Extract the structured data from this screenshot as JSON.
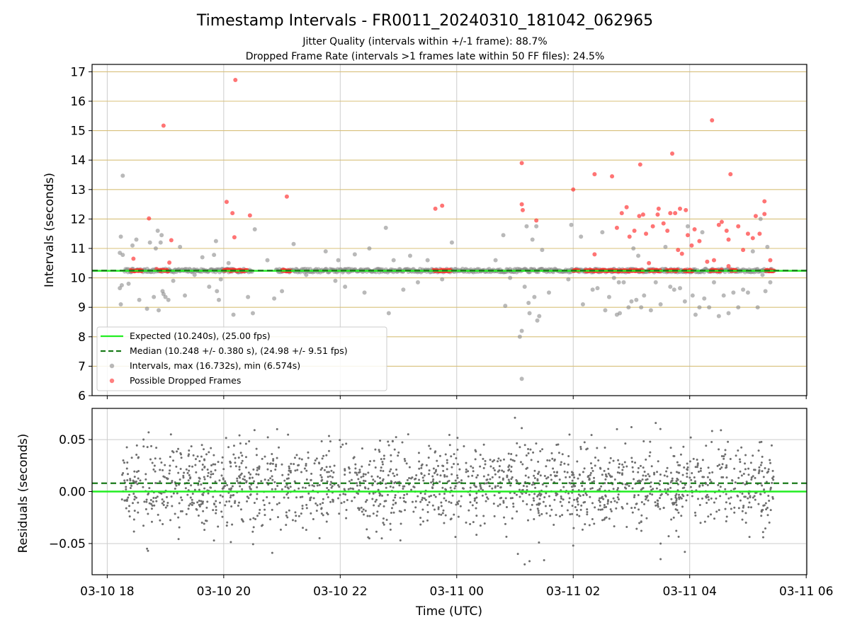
{
  "title": "Timestamp Intervals - FR0011_20240310_181042_062965",
  "subtitle_lines": [
    "Jitter Quality (intervals within +/-1 frame): 88.7%",
    "Dropped Frame Rate (intervals >1 frames late within 50 FF files): 24.5%"
  ],
  "colors": {
    "expected": "#22ee22",
    "median": "#1a7a1a",
    "intervals": "#8a8a8a",
    "dropped": "#ff2a2a",
    "hgrid_top": "#d8c07a",
    "grid": "#cccccc"
  },
  "chart_data": [
    {
      "type": "scatter",
      "panel": "intervals",
      "xlabel": "",
      "ylabel": "Intervals (seconds)",
      "ylim": [
        6,
        17.25
      ],
      "yticks": [
        "6",
        "7",
        "8",
        "9",
        "10",
        "11",
        "12",
        "13",
        "14",
        "15",
        "16",
        "17"
      ],
      "grid": true,
      "legend_position": "lower-left",
      "expected": 10.24,
      "median": 10.248,
      "legend": [
        "Expected (10.240s), (25.00 fps)",
        "Median (10.248 +/- 0.380 s), (24.98 +/- 9.51 fps)",
        "Intervals, max (16.732s), min (6.574s)",
        "Possible Dropped Frames"
      ],
      "baseline_gray_hours": [
        [
          18.3,
          20.5
        ],
        [
          20.9,
          22.4
        ],
        [
          22.4,
          24.0
        ],
        [
          24.0,
          25.5
        ],
        [
          25.5,
          29.45
        ]
      ],
      "baseline_red_hours": [
        [
          18.4,
          18.6
        ],
        [
          18.9,
          19.05
        ],
        [
          20.0,
          20.4
        ],
        [
          21.0,
          21.15
        ],
        [
          23.6,
          23.9
        ],
        [
          26.0,
          26.1
        ],
        [
          26.2,
          26.4
        ],
        [
          26.4,
          26.8
        ],
        [
          26.8,
          27.2
        ],
        [
          27.3,
          27.5
        ],
        [
          27.6,
          27.8
        ],
        [
          27.9,
          28.05
        ],
        [
          28.35,
          28.55
        ],
        [
          28.7,
          28.8
        ],
        [
          29.3,
          29.45
        ]
      ],
      "dropped_points": [
        {
          "x": "03-10 18:27",
          "y": 10.65
        },
        {
          "x": "03-10 18:43",
          "y": 12.02
        },
        {
          "x": "03-10 18:51",
          "y": 10.3
        },
        {
          "x": "03-10 18:58",
          "y": 15.17
        },
        {
          "x": "03-10 19:06",
          "y": 11.28
        },
        {
          "x": "03-10 19:04",
          "y": 10.52
        },
        {
          "x": "03-10 20:03",
          "y": 12.58
        },
        {
          "x": "03-10 20:09",
          "y": 12.2
        },
        {
          "x": "03-10 20:12",
          "y": 16.72
        },
        {
          "x": "03-10 20:11",
          "y": 11.38
        },
        {
          "x": "03-10 20:27",
          "y": 12.12
        },
        {
          "x": "03-10 21:05",
          "y": 12.76
        },
        {
          "x": "03-10 23:38",
          "y": 12.35
        },
        {
          "x": "03-10 23:45",
          "y": 12.45
        },
        {
          "x": "03-11 01:07",
          "y": 13.9
        },
        {
          "x": "03-11 01:07",
          "y": 12.5
        },
        {
          "x": "03-11 01:08",
          "y": 12.3
        },
        {
          "x": "03-11 01:22",
          "y": 11.95
        },
        {
          "x": "03-11 02:00",
          "y": 13.0
        },
        {
          "x": "03-11 02:22",
          "y": 10.8
        },
        {
          "x": "03-11 02:22",
          "y": 13.52
        },
        {
          "x": "03-11 02:40",
          "y": 13.45
        },
        {
          "x": "03-11 02:45",
          "y": 11.7
        },
        {
          "x": "03-11 02:50",
          "y": 12.2
        },
        {
          "x": "03-11 02:55",
          "y": 12.4
        },
        {
          "x": "03-11 02:58",
          "y": 11.4
        },
        {
          "x": "03-11 03:03",
          "y": 11.6
        },
        {
          "x": "03-11 03:08",
          "y": 12.1
        },
        {
          "x": "03-11 03:09",
          "y": 13.85
        },
        {
          "x": "03-11 03:12",
          "y": 12.15
        },
        {
          "x": "03-11 03:15",
          "y": 11.5
        },
        {
          "x": "03-11 03:18",
          "y": 10.5
        },
        {
          "x": "03-11 03:22",
          "y": 11.75
        },
        {
          "x": "03-11 03:27",
          "y": 12.15
        },
        {
          "x": "03-11 03:28",
          "y": 12.35
        },
        {
          "x": "03-11 03:33",
          "y": 11.85
        },
        {
          "x": "03-11 03:37",
          "y": 11.6
        },
        {
          "x": "03-11 03:40",
          "y": 12.2
        },
        {
          "x": "03-11 03:42",
          "y": 14.22
        },
        {
          "x": "03-11 03:45",
          "y": 12.2
        },
        {
          "x": "03-11 03:48",
          "y": 10.95
        },
        {
          "x": "03-11 03:50",
          "y": 12.35
        },
        {
          "x": "03-11 03:52",
          "y": 10.82
        },
        {
          "x": "03-11 03:56",
          "y": 12.3
        },
        {
          "x": "03-11 03:58",
          "y": 11.45
        },
        {
          "x": "03-11 04:02",
          "y": 11.1
        },
        {
          "x": "03-11 04:05",
          "y": 11.65
        },
        {
          "x": "03-11 04:10",
          "y": 11.25
        },
        {
          "x": "03-11 04:18",
          "y": 10.55
        },
        {
          "x": "03-11 04:23",
          "y": 15.35
        },
        {
          "x": "03-11 04:25",
          "y": 10.6
        },
        {
          "x": "03-11 04:30",
          "y": 11.8
        },
        {
          "x": "03-11 04:33",
          "y": 11.9
        },
        {
          "x": "03-11 04:38",
          "y": 11.6
        },
        {
          "x": "03-11 04:40",
          "y": 11.3
        },
        {
          "x": "03-11 04:42",
          "y": 13.52
        },
        {
          "x": "03-11 04:40",
          "y": 10.4
        },
        {
          "x": "03-11 04:50",
          "y": 11.75
        },
        {
          "x": "03-11 04:55",
          "y": 10.95
        },
        {
          "x": "03-11 05:00",
          "y": 11.5
        },
        {
          "x": "03-11 05:05",
          "y": 11.35
        },
        {
          "x": "03-11 05:08",
          "y": 12.1
        },
        {
          "x": "03-11 05:12",
          "y": 11.5
        },
        {
          "x": "03-11 05:17",
          "y": 12.6
        },
        {
          "x": "03-11 05:17",
          "y": 12.17
        },
        {
          "x": "03-11 05:23",
          "y": 10.6
        }
      ],
      "scatter_gray_points": [
        {
          "x": "03-10 18:16",
          "y": 13.47
        },
        {
          "x": "03-10 18:14",
          "y": 11.4
        },
        {
          "x": "03-10 18:13",
          "y": 10.85
        },
        {
          "x": "03-10 18:16",
          "y": 10.78
        },
        {
          "x": "03-10 18:13",
          "y": 9.65
        },
        {
          "x": "03-10 18:15",
          "y": 9.75
        },
        {
          "x": "03-10 18:14",
          "y": 9.1
        },
        {
          "x": "03-10 18:22",
          "y": 9.8
        },
        {
          "x": "03-10 18:26",
          "y": 11.1
        },
        {
          "x": "03-10 18:30",
          "y": 11.3
        },
        {
          "x": "03-10 18:33",
          "y": 9.25
        },
        {
          "x": "03-10 18:41",
          "y": 8.95
        },
        {
          "x": "03-10 18:44",
          "y": 11.2
        },
        {
          "x": "03-10 18:48",
          "y": 9.35
        },
        {
          "x": "03-10 18:50",
          "y": 11.0
        },
        {
          "x": "03-10 18:52",
          "y": 11.6
        },
        {
          "x": "03-10 18:55",
          "y": 11.2
        },
        {
          "x": "03-10 18:57",
          "y": 9.55
        },
        {
          "x": "03-10 18:58",
          "y": 9.45
        },
        {
          "x": "03-10 18:53",
          "y": 8.9
        },
        {
          "x": "03-10 18:56",
          "y": 11.45
        },
        {
          "x": "03-10 19:00",
          "y": 9.35
        },
        {
          "x": "03-10 19:03",
          "y": 9.25
        },
        {
          "x": "03-10 19:08",
          "y": 9.9
        },
        {
          "x": "03-10 19:15",
          "y": 11.05
        },
        {
          "x": "03-10 19:20",
          "y": 9.4
        },
        {
          "x": "03-10 19:30",
          "y": 10.1
        },
        {
          "x": "03-10 19:38",
          "y": 10.7
        },
        {
          "x": "03-10 19:45",
          "y": 9.7
        },
        {
          "x": "03-10 19:50",
          "y": 10.78
        },
        {
          "x": "03-10 19:52",
          "y": 11.25
        },
        {
          "x": "03-10 19:53",
          "y": 9.55
        },
        {
          "x": "03-10 19:55",
          "y": 9.25
        },
        {
          "x": "03-10 19:57",
          "y": 9.95
        },
        {
          "x": "03-10 20:05",
          "y": 10.5
        },
        {
          "x": "03-10 20:10",
          "y": 8.75
        },
        {
          "x": "03-10 20:15",
          "y": 10.25
        },
        {
          "x": "03-10 20:25",
          "y": 9.35
        },
        {
          "x": "03-10 20:32",
          "y": 11.65
        },
        {
          "x": "03-10 20:30",
          "y": 8.8
        },
        {
          "x": "03-10 20:45",
          "y": 10.6
        },
        {
          "x": "03-10 20:52",
          "y": 9.3
        },
        {
          "x": "03-10 21:00",
          "y": 9.55
        },
        {
          "x": "03-10 21:12",
          "y": 11.15
        },
        {
          "x": "03-10 21:25",
          "y": 10.1
        },
        {
          "x": "03-10 21:45",
          "y": 10.9
        },
        {
          "x": "03-10 21:55",
          "y": 9.9
        },
        {
          "x": "03-10 21:58",
          "y": 10.6
        },
        {
          "x": "03-10 22:05",
          "y": 9.7
        },
        {
          "x": "03-10 22:15",
          "y": 10.8
        },
        {
          "x": "03-10 22:25",
          "y": 9.5
        },
        {
          "x": "03-10 22:30",
          "y": 11.0
        },
        {
          "x": "03-10 22:40",
          "y": 10.3
        },
        {
          "x": "03-10 22:47",
          "y": 11.7
        },
        {
          "x": "03-10 22:50",
          "y": 8.8
        },
        {
          "x": "03-10 22:55",
          "y": 10.6
        },
        {
          "x": "03-10 23:05",
          "y": 9.6
        },
        {
          "x": "03-10 23:12",
          "y": 10.75
        },
        {
          "x": "03-10 23:20",
          "y": 9.85
        },
        {
          "x": "03-10 23:30",
          "y": 10.6
        },
        {
          "x": "03-10 23:45",
          "y": 9.95
        },
        {
          "x": "03-10 23:55",
          "y": 11.2
        },
        {
          "x": "03-11 00:40",
          "y": 10.6
        },
        {
          "x": "03-11 00:48",
          "y": 11.45
        },
        {
          "x": "03-11 00:50",
          "y": 9.05
        },
        {
          "x": "03-11 00:55",
          "y": 10.0
        },
        {
          "x": "03-11 01:05",
          "y": 8.0
        },
        {
          "x": "03-11 01:07",
          "y": 8.2
        },
        {
          "x": "03-11 01:07",
          "y": 6.57
        },
        {
          "x": "03-11 01:10",
          "y": 9.7
        },
        {
          "x": "03-11 01:12",
          "y": 11.75
        },
        {
          "x": "03-11 01:14",
          "y": 9.15
        },
        {
          "x": "03-11 01:15",
          "y": 8.8
        },
        {
          "x": "03-11 01:18",
          "y": 11.3
        },
        {
          "x": "03-11 01:20",
          "y": 9.35
        },
        {
          "x": "03-11 01:22",
          "y": 11.75
        },
        {
          "x": "03-11 01:23",
          "y": 8.55
        },
        {
          "x": "03-11 01:25",
          "y": 8.7
        },
        {
          "x": "03-11 01:28",
          "y": 10.95
        },
        {
          "x": "03-11 01:35",
          "y": 9.5
        },
        {
          "x": "03-11 01:55",
          "y": 9.95
        },
        {
          "x": "03-11 01:58",
          "y": 11.8
        },
        {
          "x": "03-11 02:10",
          "y": 9.1
        },
        {
          "x": "03-11 02:08",
          "y": 11.4
        },
        {
          "x": "03-11 02:20",
          "y": 9.6
        },
        {
          "x": "03-11 02:25",
          "y": 9.65
        },
        {
          "x": "03-11 02:30",
          "y": 11.55
        },
        {
          "x": "03-11 02:33",
          "y": 8.9
        },
        {
          "x": "03-11 02:37",
          "y": 9.35
        },
        {
          "x": "03-11 02:42",
          "y": 10.0
        },
        {
          "x": "03-11 02:45",
          "y": 8.75
        },
        {
          "x": "03-11 02:47",
          "y": 9.85
        },
        {
          "x": "03-11 02:48",
          "y": 8.8
        },
        {
          "x": "03-11 02:52",
          "y": 9.85
        },
        {
          "x": "03-11 02:57",
          "y": 9.0
        },
        {
          "x": "03-11 03:00",
          "y": 9.2
        },
        {
          "x": "03-11 03:02",
          "y": 11.0
        },
        {
          "x": "03-11 03:05",
          "y": 9.25
        },
        {
          "x": "03-11 03:07",
          "y": 10.75
        },
        {
          "x": "03-11 03:10",
          "y": 9.0
        },
        {
          "x": "03-11 03:13",
          "y": 9.4
        },
        {
          "x": "03-11 03:20",
          "y": 8.9
        },
        {
          "x": "03-11 03:25",
          "y": 9.85
        },
        {
          "x": "03-11 03:30",
          "y": 9.1
        },
        {
          "x": "03-11 03:35",
          "y": 11.05
        },
        {
          "x": "03-11 03:40",
          "y": 9.7
        },
        {
          "x": "03-11 03:44",
          "y": 9.6
        },
        {
          "x": "03-11 03:50",
          "y": 9.65
        },
        {
          "x": "03-11 03:55",
          "y": 9.2
        },
        {
          "x": "03-11 03:58",
          "y": 11.75
        },
        {
          "x": "03-11 04:03",
          "y": 9.4
        },
        {
          "x": "03-11 04:06",
          "y": 8.75
        },
        {
          "x": "03-11 04:10",
          "y": 9.0
        },
        {
          "x": "03-11 04:13",
          "y": 11.55
        },
        {
          "x": "03-11 04:15",
          "y": 9.3
        },
        {
          "x": "03-11 04:20",
          "y": 9.0
        },
        {
          "x": "03-11 04:25",
          "y": 9.85
        },
        {
          "x": "03-11 04:30",
          "y": 8.7
        },
        {
          "x": "03-11 04:35",
          "y": 9.4
        },
        {
          "x": "03-11 04:40",
          "y": 8.8
        },
        {
          "x": "03-11 04:45",
          "y": 9.5
        },
        {
          "x": "03-11 04:50",
          "y": 9.0
        },
        {
          "x": "03-11 04:55",
          "y": 9.6
        },
        {
          "x": "03-11 05:00",
          "y": 9.5
        },
        {
          "x": "03-11 05:05",
          "y": 10.9
        },
        {
          "x": "03-11 05:10",
          "y": 9.0
        },
        {
          "x": "03-11 05:13",
          "y": 12.0
        },
        {
          "x": "03-11 05:15",
          "y": 10.1
        },
        {
          "x": "03-11 05:18",
          "y": 9.55
        },
        {
          "x": "03-11 05:20",
          "y": 11.05
        },
        {
          "x": "03-11 05:23",
          "y": 9.85
        }
      ]
    },
    {
      "type": "scatter",
      "panel": "residuals",
      "xlabel": "Time (UTC)",
      "ylabel": "Residuals (seconds)",
      "xlim_hours": [
        17.74,
        30.01
      ],
      "ylim": [
        -0.08,
        0.08
      ],
      "yticks": [
        "0.05",
        "0.00",
        "−0.05"
      ],
      "ytick_values": [
        0.05,
        0.0,
        -0.05
      ],
      "xticks": [
        "03-10 18",
        "03-10 20",
        "03-10 22",
        "03-11 00",
        "03-11 02",
        "03-11 04",
        "03-11 06"
      ],
      "xtick_hours": [
        18,
        20,
        22,
        24,
        26,
        28,
        30
      ],
      "expected": 0.0,
      "median": 0.008,
      "residual_cloud": {
        "x_range": [
          "03-10 18:15",
          "03-11 05:27"
        ],
        "mean": 0.005,
        "sd": 0.02,
        "n": 1800
      },
      "residual_outliers": [
        {
          "x": "03-10 18:41",
          "y": -0.055
        },
        {
          "x": "03-10 18:42",
          "y": -0.057
        },
        {
          "x": "03-10 20:50",
          "y": -0.059
        },
        {
          "x": "03-10 20:55",
          "y": 0.06
        },
        {
          "x": "03-10 23:02",
          "y": -0.047
        },
        {
          "x": "03-10 22:30",
          "y": -0.045
        },
        {
          "x": "03-11 01:00",
          "y": 0.071
        },
        {
          "x": "03-11 01:07",
          "y": 0.061
        },
        {
          "x": "03-11 01:03",
          "y": -0.06
        },
        {
          "x": "03-11 01:10",
          "y": -0.07
        },
        {
          "x": "03-11 01:15",
          "y": -0.067
        },
        {
          "x": "03-11 01:30",
          "y": -0.066
        },
        {
          "x": "03-11 02:00",
          "y": -0.052
        },
        {
          "x": "03-11 03:00",
          "y": 0.062
        },
        {
          "x": "03-11 03:25",
          "y": 0.066
        },
        {
          "x": "03-11 03:30",
          "y": -0.05
        },
        {
          "x": "03-11 03:30",
          "y": -0.065
        },
        {
          "x": "03-11 03:55",
          "y": -0.058
        }
      ]
    }
  ]
}
